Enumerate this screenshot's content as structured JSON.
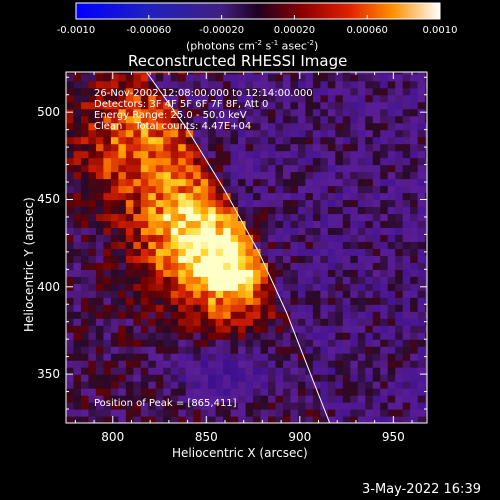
{
  "colorbar": {
    "ticks": [
      "-0.0010",
      "-0.00060",
      "-0.00020",
      "0.00020",
      "0.00060",
      "0.0010"
    ],
    "units": "(photons cm",
    "units_exp1": "-2",
    "units_mid": " s",
    "units_exp2": "-1",
    "units_end": " asec",
    "units_exp3": "-2",
    "units_close": ")",
    "min": -0.001,
    "max": 0.001
  },
  "chart_data": {
    "type": "heatmap",
    "title": "Reconstructed RHESSI Image",
    "xlabel": "Heliocentric X (arcsec)",
    "ylabel": "Heliocentric Y (arcsec)",
    "xlim": [
      775,
      968
    ],
    "ylim": [
      322,
      523
    ],
    "x_ticks": [
      800,
      850,
      900,
      950
    ],
    "y_ticks": [
      350,
      400,
      450,
      500
    ],
    "x_tick_labels": [
      "800",
      "850",
      "900",
      "950"
    ],
    "y_tick_labels": [
      "350",
      "400",
      "450",
      "500"
    ],
    "peak": [
      865,
      411
    ],
    "info_lines": [
      "26-Nov-2002 12:08:00.000 to 12:14:00.000",
      "Detectors: 3F 4F 5F 6F 7F 8F, Att 0",
      "Energy Range: 25.0 - 50.0 keV",
      "Clean    Total counts: 4.47E+04"
    ],
    "peak_label": "Position of Peak = [865,411]",
    "limb_points": [
      [
        818,
        523
      ],
      [
        840,
        490
      ],
      [
        860,
        455
      ],
      [
        878,
        420
      ],
      [
        893,
        385
      ],
      [
        905,
        352
      ],
      [
        916,
        322
      ]
    ]
  },
  "footer": {
    "date": "3-May-2022 16:39"
  }
}
